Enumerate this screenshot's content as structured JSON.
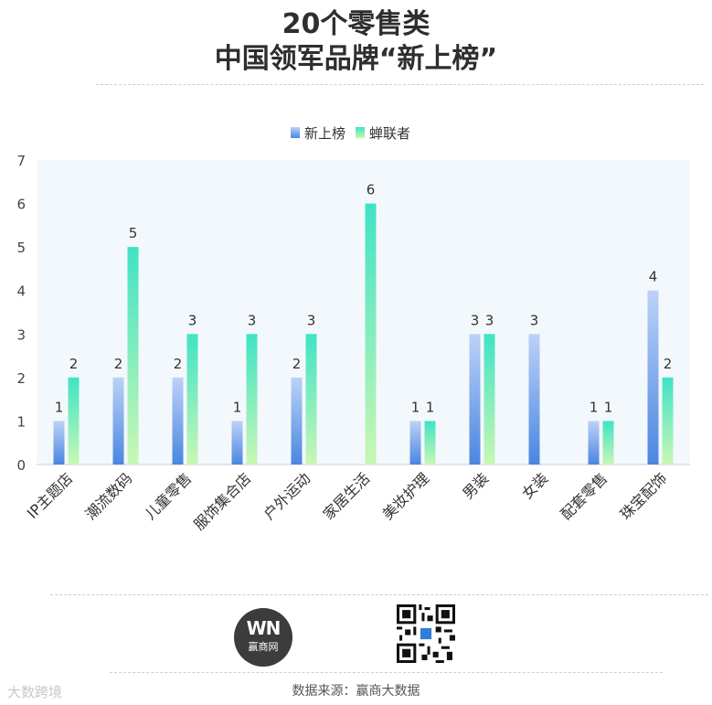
{
  "title_line1": "20个零售类",
  "title_line2": "中国领军品牌“新上榜”",
  "source": "数据来源：赢商大数据",
  "logo": {
    "mark": "WN",
    "name": "赢商网"
  },
  "qr_icon": "qr-code-icon",
  "watermark": "大数跨境",
  "colors": {
    "series1_top": "#bcd2f7",
    "series1_bottom": "#4a86e0",
    "series2_top": "#3fe3c6",
    "series2_bottom": "#c9f7b4",
    "plot_bg": "#f3f8fd"
  },
  "chart_data": {
    "type": "bar",
    "categories": [
      "IP主题店",
      "潮流数码",
      "儿童零售",
      "服饰集合店",
      "户外运动",
      "家居生活",
      "美妆护理",
      "男装",
      "女装",
      "配套零售",
      "珠宝配饰"
    ],
    "series": [
      {
        "name": "新上榜",
        "values": [
          1,
          2,
          2,
          1,
          2,
          null,
          1,
          3,
          3,
          1,
          4
        ]
      },
      {
        "name": "蝉联者",
        "values": [
          2,
          5,
          3,
          3,
          3,
          6,
          1,
          3,
          null,
          1,
          2
        ]
      }
    ],
    "yticks": [
      0,
      1,
      2,
      3,
      4,
      5,
      6,
      7
    ],
    "ylim": [
      0,
      7
    ],
    "legend": "top-center",
    "grid": false
  }
}
